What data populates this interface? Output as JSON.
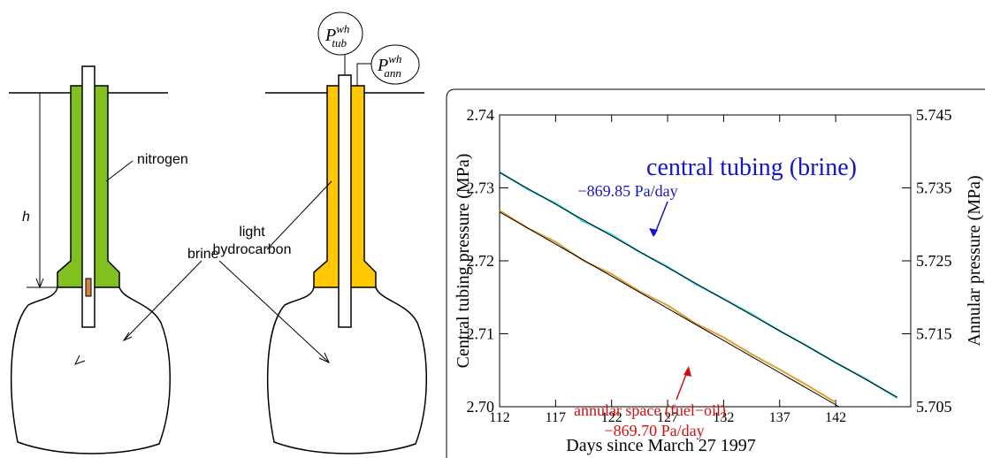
{
  "diagram": {
    "nitrogen": "nitrogen",
    "h": "h",
    "light_hydrocarbon": [
      "light",
      "hydrocarbon"
    ],
    "brine": "brine",
    "p_tub": {
      "base": "P",
      "sup": "wh",
      "sub": "tub"
    },
    "p_ann": {
      "base": "P",
      "sup": "wh",
      "sub": "ann"
    }
  },
  "chart_data": {
    "type": "line",
    "xlabel": "Days since March 27 1997",
    "ylabel": "Central tubing pressure (MPa)",
    "y2label": "Annular pressure (MPa)",
    "xlim": [
      112,
      148.7
    ],
    "xticks": [
      112,
      117,
      122,
      127,
      132,
      137,
      142
    ],
    "ylim": [
      2.7,
      2.74
    ],
    "yticks": [
      {
        "value": 2.7,
        "label": "2.70"
      },
      2.71,
      2.72,
      2.73,
      2.74
    ],
    "y2lim": [
      5.705,
      5.745
    ],
    "y2ticks": [
      5.705,
      5.715,
      5.725,
      5.735,
      5.745
    ],
    "series": [
      {
        "name": "central tubing (brine)",
        "color": "#22d4dc",
        "x": [
          112,
          114.5,
          117,
          119.5,
          122,
          124.5,
          127,
          129.5,
          132,
          134.5,
          137,
          139.5,
          142,
          144.5,
          147.5
        ],
        "values": [
          2.7322,
          2.7298,
          2.7279,
          2.7254,
          2.7236,
          2.7212,
          2.7192,
          2.7168,
          2.7148,
          2.7127,
          2.7104,
          2.7083,
          2.706,
          2.704,
          2.7012
        ]
      },
      {
        "name": "annular space (fuel−oil)",
        "color": "#e0a030",
        "axis": "y2",
        "x": [
          112,
          114.5,
          117,
          119.5,
          122,
          124.5,
          127,
          129.5,
          132,
          134.5,
          137,
          139.5,
          142
        ],
        "values": [
          5.7319,
          5.7295,
          5.7276,
          5.725,
          5.7232,
          5.7208,
          5.7189,
          5.7164,
          5.7145,
          5.7122,
          5.7101,
          5.7079,
          5.7056
        ]
      }
    ],
    "fits": [
      {
        "color": "#000000",
        "x": [
          112,
          147.5
        ],
        "values": [
          2.7321,
          2.7013
        ]
      },
      {
        "color": "#000000",
        "axis": "y2",
        "x": [
          112,
          142.3
        ],
        "values": [
          5.7317,
          5.705
        ]
      }
    ],
    "annotations": {
      "tubing_rate": "−869.85 Pa/day",
      "annular_rate": "−869.70 Pa/day"
    }
  }
}
